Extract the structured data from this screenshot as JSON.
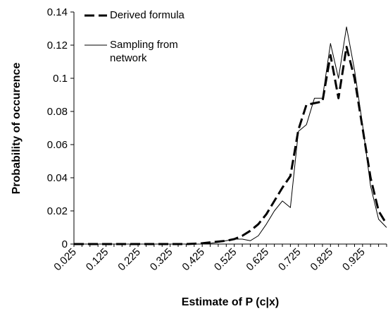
{
  "chart_data": {
    "type": "line",
    "x_label": "Estimate of P (c|x)",
    "y_label": "Probability of occurence",
    "categories": [
      "0.025",
      null,
      null,
      null,
      "0.125",
      null,
      null,
      null,
      "0.225",
      null,
      null,
      null,
      "0.325",
      null,
      null,
      null,
      "0.425",
      null,
      null,
      null,
      "0.525",
      null,
      null,
      null,
      "0.625",
      null,
      null,
      null,
      "0.725",
      null,
      null,
      null,
      "0.825",
      null,
      null,
      null,
      "0.925",
      null,
      null,
      null
    ],
    "series": [
      {
        "name": "Derived formula",
        "color": "#000000",
        "dashed": true,
        "values": [
          0,
          0,
          0,
          0,
          0,
          0,
          0,
          0,
          0,
          0,
          0,
          0,
          0,
          0,
          0,
          0.0002,
          0.0005,
          0.001,
          0.0015,
          0.002,
          0.003,
          0.005,
          0.008,
          0.012,
          0.018,
          0.026,
          0.034,
          0.041,
          0.069,
          0.084,
          0.085,
          0.086,
          0.114,
          0.088,
          0.119,
          0.1,
          0.07,
          0.04,
          0.02,
          0.012
        ]
      },
      {
        "name": "Sampling from network",
        "color": "#000000",
        "dashed": false,
        "values": [
          0,
          0,
          0,
          0,
          0,
          0,
          0,
          0,
          0,
          0,
          0,
          0,
          0,
          0,
          0,
          0,
          0,
          0.0005,
          0.001,
          0.002,
          0.003,
          0.003,
          0.002,
          0.005,
          0.012,
          0.02,
          0.026,
          0.022,
          0.068,
          0.072,
          0.088,
          0.088,
          0.121,
          0.1,
          0.131,
          0.105,
          0.072,
          0.035,
          0.015,
          0.01
        ]
      }
    ],
    "ylim": [
      0,
      0.14
    ],
    "yticks": [
      0,
      0.02,
      0.04,
      0.06,
      0.08,
      0.1,
      0.12,
      0.14
    ],
    "grid": false,
    "legend": "top-left"
  }
}
